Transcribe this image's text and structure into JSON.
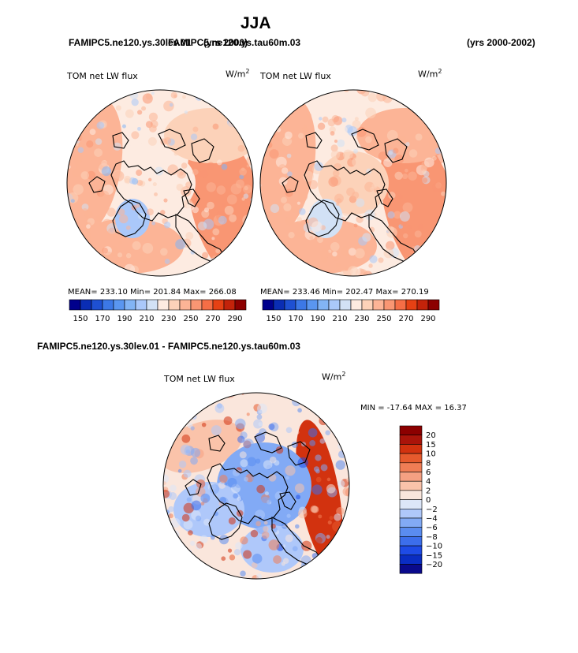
{
  "page": {
    "title": "JJA",
    "top_case_label": "FAMIPC5.ne120.ys.30lev.01",
    "top_case_label_overlap": "FAMIPC5.ne120.ys.tau60m.03",
    "top_case_years_overlap": "(yrs 2000)",
    "top_years": "(yrs 2000-2002)",
    "diff_title": "FAMIPC5.ne120.ys.30lev.01 - FAMIPC5.ne120.ys.tau60m.03"
  },
  "colors": {
    "land_outline": "#000000",
    "background": "#ffffff"
  },
  "chart_data": [
    {
      "type": "heatmap",
      "name": "panel-left",
      "projection": "north-polar-stereographic",
      "variable": "TOM net LW flux",
      "units_base": "W/m",
      "units_exp": "2",
      "stats_text": "MEAN= 233.10   Min= 201.84   Max= 266.08",
      "mean": 233.1,
      "min": 201.84,
      "max": 266.08,
      "colorbar_levels": [
        150,
        160,
        170,
        180,
        190,
        200,
        210,
        220,
        230,
        240,
        250,
        260,
        270,
        280,
        290
      ],
      "colorbar_labels": [
        "150",
        "170",
        "190",
        "210",
        "230",
        "250",
        "270",
        "290"
      ],
      "colorbar_colors": [
        "#00008c",
        "#0a2db4",
        "#1e50d2",
        "#3c78e6",
        "#5a96f0",
        "#82b4f5",
        "#aac8fa",
        "#d2e1f5",
        "#fdebe1",
        "#fcd2b9",
        "#fcb496",
        "#f99673",
        "#f56e46",
        "#e64114",
        "#c3230a",
        "#8c0000"
      ],
      "regional_samples": [
        {
          "region": "pole",
          "value": 222
        },
        {
          "region": "greenland",
          "value": 205
        },
        {
          "region": "north-atlantic",
          "value": 250
        },
        {
          "region": "north-pacific",
          "value": 245
        },
        {
          "region": "eurasia",
          "value": 238
        },
        {
          "region": "north-america",
          "value": 240
        }
      ]
    },
    {
      "type": "heatmap",
      "name": "panel-right",
      "projection": "north-polar-stereographic",
      "variable": "TOM net LW flux",
      "units_base": "W/m",
      "units_exp": "2",
      "stats_text": "MEAN= 233.46   Min= 202.47   Max= 270.19",
      "mean": 233.46,
      "min": 202.47,
      "max": 270.19,
      "colorbar_levels": [
        150,
        160,
        170,
        180,
        190,
        200,
        210,
        220,
        230,
        240,
        250,
        260,
        270,
        280,
        290
      ],
      "colorbar_labels": [
        "150",
        "170",
        "190",
        "210",
        "230",
        "250",
        "270",
        "290"
      ],
      "colorbar_colors": [
        "#00008c",
        "#0a2db4",
        "#1e50d2",
        "#3c78e6",
        "#5a96f0",
        "#82b4f5",
        "#aac8fa",
        "#d2e1f5",
        "#fdebe1",
        "#fcd2b9",
        "#fcb496",
        "#f99673",
        "#f56e46",
        "#e64114",
        "#c3230a",
        "#8c0000"
      ],
      "regional_samples": [
        {
          "region": "pole",
          "value": 230
        },
        {
          "region": "greenland",
          "value": 212
        },
        {
          "region": "north-atlantic",
          "value": 252
        },
        {
          "region": "north-pacific",
          "value": 246
        },
        {
          "region": "eurasia",
          "value": 240
        },
        {
          "region": "north-america",
          "value": 242
        }
      ]
    },
    {
      "type": "heatmap",
      "name": "panel-difference",
      "projection": "north-polar-stereographic",
      "variable": "TOM net LW flux",
      "units_base": "W/m",
      "units_exp": "2",
      "stats_text": "MIN = -17.64  MAX =  16.37",
      "min": -17.64,
      "max": 16.37,
      "colorbar_levels": [
        -20,
        -15,
        -10,
        -8,
        -6,
        -4,
        -2,
        0,
        2,
        4,
        6,
        8,
        10,
        15,
        20
      ],
      "colorbar_labels": [
        "20",
        "15",
        "10",
        "8",
        "6",
        "4",
        "2",
        "0",
        "−2",
        "−4",
        "−6",
        "−8",
        "−10",
        "−15",
        "−20"
      ],
      "colorbar_colors": [
        "#0a0a8c",
        "#0a2dc3",
        "#1e4be6",
        "#3c6eeb",
        "#5a8cf0",
        "#82aaf5",
        "#afc8fa",
        "#dce6f8",
        "#fae6dc",
        "#fac3aa",
        "#f5a082",
        "#f07d55",
        "#e65a2d",
        "#d2320f",
        "#aa140a",
        "#8c0000"
      ],
      "regional_samples": [
        {
          "region": "pole",
          "value": -4
        },
        {
          "region": "siberia",
          "value": -6
        },
        {
          "region": "alaska-pacific-band",
          "value": 10
        },
        {
          "region": "north-atlantic",
          "value": 3
        },
        {
          "region": "canada",
          "value": -3
        }
      ]
    }
  ]
}
